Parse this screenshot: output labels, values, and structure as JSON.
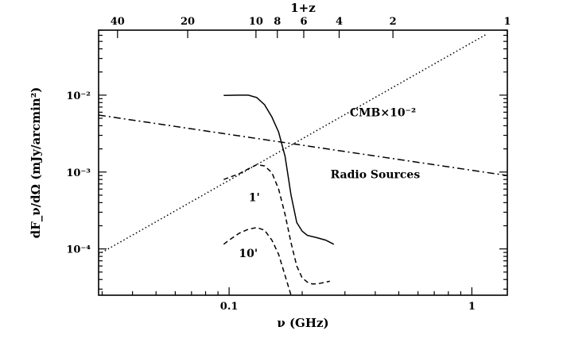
{
  "chart_data": {
    "type": "line",
    "title": "",
    "xlabel": "ν (GHz)",
    "ylabel": "dF_ν/dΩ (mJy/arcmin²)",
    "top_axis_label": "1+z",
    "x_scale": "log",
    "y_scale": "log",
    "xlim": [
      0.029,
      1.4
    ],
    "ylim": [
      2.5e-05,
      0.07
    ],
    "x_ticks": [
      {
        "value": 0.1,
        "label": "0.1"
      },
      {
        "value": 1,
        "label": "1"
      }
    ],
    "y_ticks": [
      {
        "value": 0.0001,
        "label": "10⁻⁴"
      },
      {
        "value": 0.001,
        "label": "10⁻³"
      },
      {
        "value": 0.01,
        "label": "10⁻²"
      }
    ],
    "top_ticks": [
      {
        "value": 0.0347,
        "label": "40"
      },
      {
        "value": 0.0675,
        "label": "20"
      },
      {
        "value": 0.129,
        "label": "10"
      },
      {
        "value": 0.158,
        "label": "8"
      },
      {
        "value": 0.203,
        "label": "6"
      },
      {
        "value": 0.284,
        "label": "4"
      },
      {
        "value": 0.473,
        "label": "2"
      },
      {
        "value": 1.42,
        "label": "1"
      }
    ],
    "annotations": [
      {
        "text": "CMB×10⁻²",
        "x": 0.43,
        "y": 0.0053
      },
      {
        "text": "Radio Sources",
        "x": 0.4,
        "y": 0.00083
      },
      {
        "text": "1'",
        "x": 0.127,
        "y": 0.00042
      },
      {
        "text": "10'",
        "x": 0.12,
        "y": 7.8e-05
      }
    ],
    "series": [
      {
        "name": "CMB×10⁻²",
        "style": "dotted",
        "x": [
          0.029,
          1.15
        ],
        "y": [
          8.5e-05,
          0.062
        ]
      },
      {
        "name": "Radio Sources",
        "style": "long-dash",
        "x": [
          0.029,
          1.4
        ],
        "y": [
          0.0055,
          0.0009
        ]
      },
      {
        "style": "solid",
        "x": [
          0.095,
          0.11,
          0.12,
          0.13,
          0.14,
          0.15,
          0.16,
          0.17,
          0.18,
          0.19,
          0.2,
          0.21,
          0.23,
          0.25,
          0.27
        ],
        "y": [
          0.0099,
          0.01,
          0.01,
          0.0093,
          0.0075,
          0.0052,
          0.0033,
          0.0016,
          0.0005,
          0.00022,
          0.00017,
          0.00015,
          0.00014,
          0.00013,
          0.000115
        ]
      },
      {
        "style": "short-dash",
        "x": [
          0.095,
          0.11,
          0.12,
          0.13,
          0.14,
          0.15,
          0.16,
          0.17,
          0.18,
          0.19,
          0.2,
          0.21,
          0.22,
          0.23,
          0.24,
          0.26
        ],
        "y": [
          0.0008,
          0.00095,
          0.0011,
          0.00125,
          0.0012,
          0.00098,
          0.0006,
          0.00028,
          0.00012,
          6e-05,
          4.2e-05,
          3.7e-05,
          3.5e-05,
          3.5e-05,
          3.6e-05,
          3.8e-05
        ]
      },
      {
        "style": "short-dash",
        "x": [
          0.095,
          0.1,
          0.11,
          0.12,
          0.13,
          0.14,
          0.15,
          0.16,
          0.17,
          0.18
        ],
        "y": [
          0.000115,
          0.00013,
          0.00016,
          0.00018,
          0.00019,
          0.000175,
          0.00013,
          8.5e-05,
          4.5e-05,
          2.5e-05
        ]
      }
    ]
  }
}
